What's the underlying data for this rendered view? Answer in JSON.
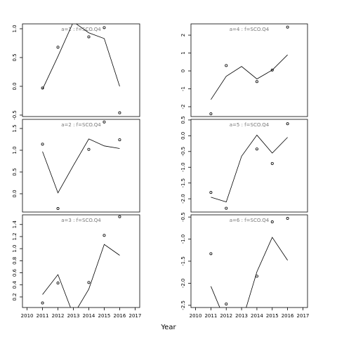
{
  "x_label": "Year",
  "chart_data": [
    {
      "type": "line",
      "title": "a=1  :  f=SCO.Q4",
      "x": [
        2011,
        2012,
        2013,
        2014,
        2015,
        2016
      ],
      "xlim": [
        2009.7,
        2017.3
      ],
      "ylim": [
        -0.525,
        1.085
      ],
      "yticks": [
        -0.5,
        {
          "value": 0,
          "label": "0.0"
        },
        0.5,
        {
          "value": 1,
          "label": "1.0"
        }
      ],
      "series": [
        {
          "style": "points",
          "color": "#000000",
          "values": [
            -0.03,
            0.68,
            null,
            0.86,
            1.02,
            -0.46
          ]
        },
        {
          "style": "line",
          "color": "#000000",
          "values": [
            -0.05,
            0.52,
            1.12,
            0.93,
            0.83,
            0.0
          ]
        }
      ]
    },
    {
      "type": "line",
      "title": "a=2  :  f=SCO.Q4",
      "x": [
        2011,
        2012,
        2013,
        2014,
        2015,
        2016
      ],
      "xlim": [
        2009.7,
        2017.3
      ],
      "ylim": [
        -0.42,
        1.71
      ],
      "yticks": [
        {
          "value": 0,
          "label": "0.0"
        },
        0.5,
        {
          "value": 1,
          "label": "1.0"
        },
        1.5
      ],
      "series": [
        {
          "style": "points",
          "color": "#000000",
          "values": [
            1.14,
            -0.34,
            null,
            1.02,
            1.65,
            1.24
          ]
        },
        {
          "style": "line",
          "color": "#000000",
          "values": [
            0.97,
            0.02,
            0.65,
            1.26,
            1.1,
            1.04
          ]
        }
      ]
    },
    {
      "type": "line",
      "title": "a=3  :  f=SCO.Q4",
      "x": [
        2011,
        2012,
        2013,
        2014,
        2015,
        2016
      ],
      "xlim": [
        2009.7,
        2017.3
      ],
      "xticks": [
        2010,
        2011,
        2012,
        2013,
        2014,
        2015,
        2016,
        2017
      ],
      "ylim": [
        0.025,
        1.56
      ],
      "yticks": [
        0.2,
        0.4,
        0.6,
        0.8,
        {
          "value": 1,
          "label": "1.0"
        },
        1.2,
        1.4
      ],
      "series": [
        {
          "style": "points",
          "color": "#000000",
          "values": [
            0.1,
            0.43,
            null,
            0.44,
            1.22,
            1.53
          ]
        },
        {
          "style": "line",
          "color": "#000000",
          "values": [
            0.24,
            0.57,
            -0.1,
            0.33,
            1.07,
            0.89
          ]
        }
      ]
    },
    {
      "type": "line",
      "title": "a=4  :  f=SCO.Q4",
      "x": [
        2011,
        2012,
        2013,
        2014,
        2015,
        2016
      ],
      "xlim": [
        2009.7,
        2017.3
      ],
      "ylim": [
        -2.55,
        2.63
      ],
      "yticks": [
        -2,
        -1,
        0,
        1,
        2
      ],
      "series": [
        {
          "style": "points",
          "color": "#000000",
          "values": [
            -2.4,
            0.3,
            null,
            -0.6,
            0.05,
            2.45
          ]
        },
        {
          "style": "line",
          "color": "#000000",
          "values": [
            -1.6,
            -0.3,
            0.25,
            -0.45,
            0.05,
            0.9
          ]
        }
      ]
    },
    {
      "type": "line",
      "title": "a=5  :  f=SCO.Q4",
      "x": [
        2011,
        2012,
        2013,
        2014,
        2015,
        2016
      ],
      "xlim": [
        2009.7,
        2017.3
      ],
      "ylim": [
        -2.42,
        0.52
      ],
      "yticks": [
        {
          "value": -2,
          "label": "-2.0"
        },
        -1.5,
        {
          "value": -1,
          "label": "-1.0"
        },
        -0.5,
        {
          "value": 0,
          "label": "0.0"
        },
        0.5
      ],
      "series": [
        {
          "style": "points",
          "color": "#000000",
          "values": [
            -1.8,
            -2.3,
            null,
            -0.42,
            -0.88,
            0.38
          ]
        },
        {
          "style": "line",
          "color": "#000000",
          "values": [
            -1.95,
            -2.1,
            -0.65,
            0.02,
            -0.55,
            -0.05
          ]
        }
      ]
    },
    {
      "type": "line",
      "title": "a=6  :  f=SCO.Q4",
      "x": [
        2011,
        2012,
        2013,
        2014,
        2015,
        2016
      ],
      "xlim": [
        2009.7,
        2017.3
      ],
      "xticks": [
        2010,
        2011,
        2012,
        2013,
        2014,
        2015,
        2016,
        2017
      ],
      "ylim": [
        -2.55,
        -0.45
      ],
      "yticks": [
        -2.5,
        {
          "value": -2,
          "label": "-2.0"
        },
        -1.5,
        {
          "value": -1,
          "label": "-1.0"
        },
        -0.5
      ],
      "series": [
        {
          "style": "points",
          "color": "#000000",
          "values": [
            -1.33,
            -2.47,
            null,
            -1.84,
            -0.61,
            -0.53
          ]
        },
        {
          "style": "line",
          "color": "#000000",
          "values": [
            -2.07,
            -2.9,
            -2.9,
            -1.74,
            -0.96,
            -1.48
          ]
        }
      ]
    }
  ]
}
